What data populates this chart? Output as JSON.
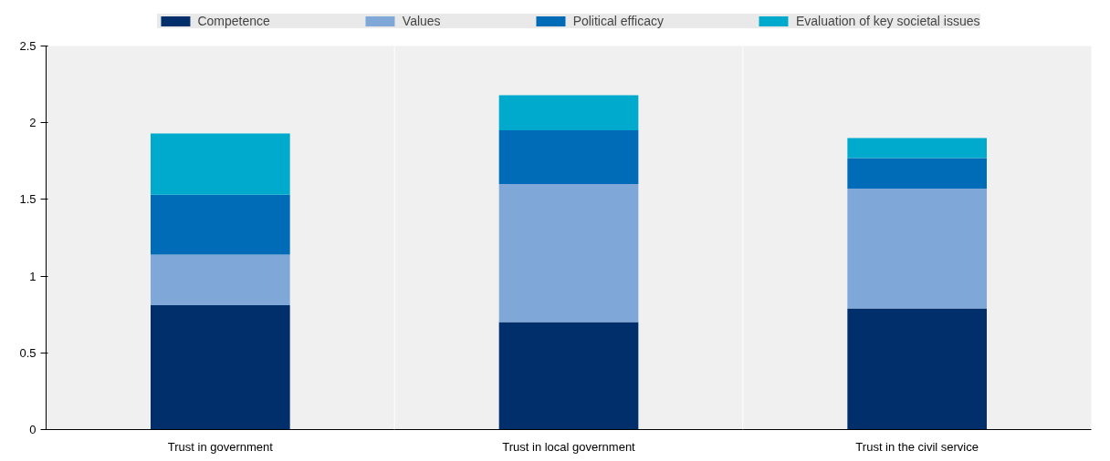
{
  "chart_data": {
    "type": "bar",
    "stacked": true,
    "categories": [
      "Trust in government",
      "Trust in local government",
      "Trust in the civil service"
    ],
    "series": [
      {
        "name": "Competence",
        "color": "#002f6c",
        "values": [
          0.81,
          0.7,
          0.79
        ]
      },
      {
        "name": "Values",
        "color": "#7fa8d9",
        "values": [
          0.33,
          0.9,
          0.78
        ]
      },
      {
        "name": "Political efficacy",
        "color": "#006bb6",
        "values": [
          0.39,
          0.35,
          0.2
        ]
      },
      {
        "name": "Evaluation of key societal issues",
        "color": "#00aacc",
        "values": [
          0.4,
          0.23,
          0.13
        ]
      }
    ],
    "ylim": [
      0,
      2.5
    ],
    "yticks": [
      0,
      0.5,
      1,
      1.5,
      2,
      2.5
    ],
    "grid": false,
    "legend": "top"
  }
}
